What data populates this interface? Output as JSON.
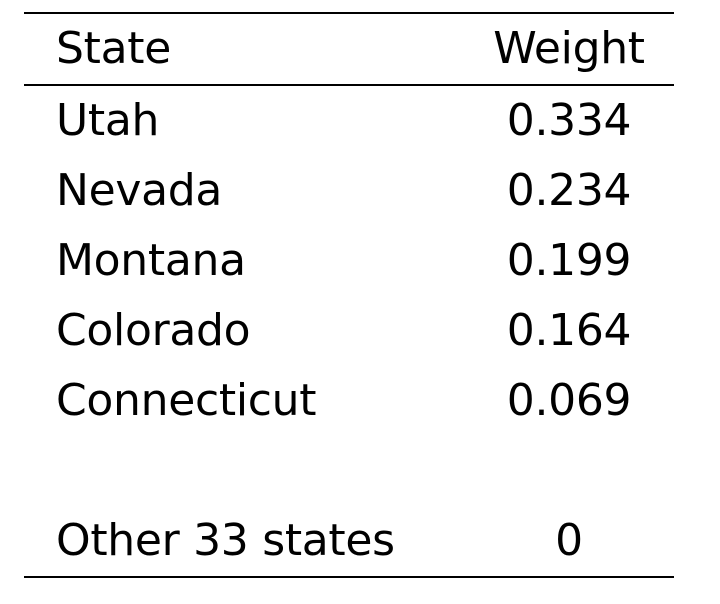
{
  "table": {
    "headers": {
      "state": "State",
      "weight": "Weight"
    },
    "rows": [
      {
        "state": "Utah",
        "weight": "0.334"
      },
      {
        "state": "Nevada",
        "weight": "0.234"
      },
      {
        "state": "Montana",
        "weight": "0.199"
      },
      {
        "state": "Colorado",
        "weight": "0.164"
      },
      {
        "state": "Connecticut",
        "weight": "0.069"
      },
      {
        "state": "Other 33 states",
        "weight": "0"
      }
    ]
  }
}
